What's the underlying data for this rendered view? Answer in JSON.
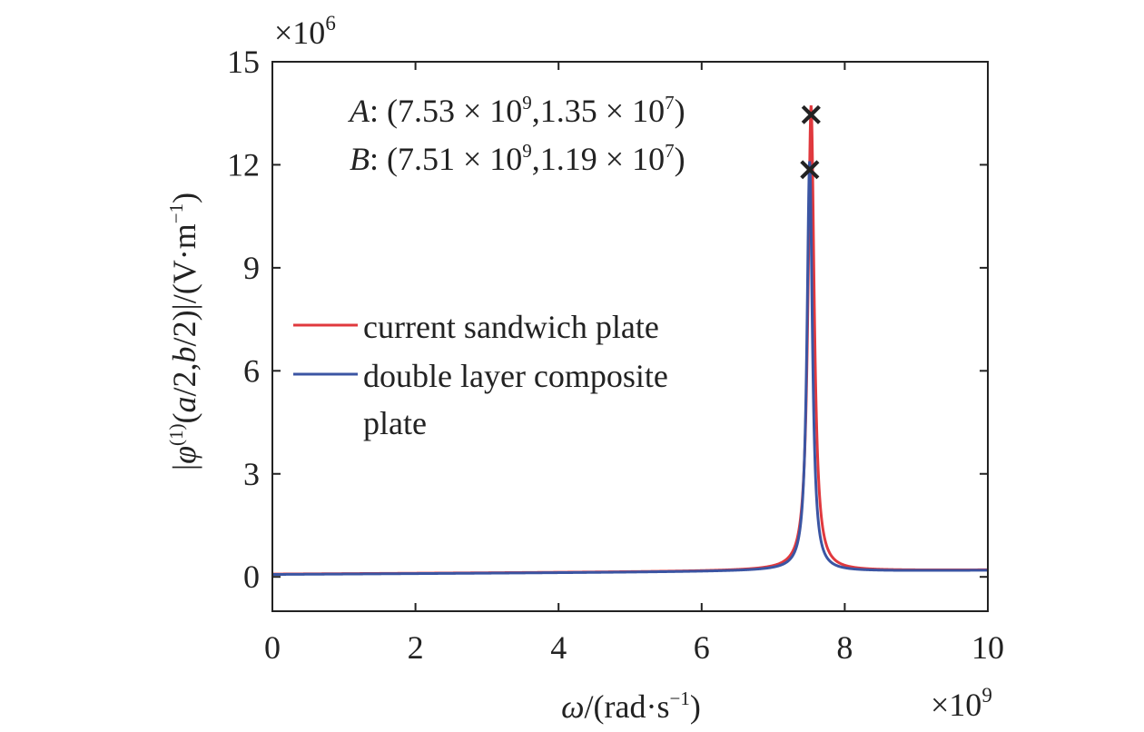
{
  "chart_data": {
    "type": "line",
    "xlabel": {
      "var": "ω",
      "rest": "/(rad·s",
      "sup": "−1",
      "close": ")"
    },
    "ylabel": {
      "pre": "|",
      "var": "φ",
      "sup": "(1)",
      "mid1": "(",
      "a": "a",
      "mid2": "/2,",
      "b": "b",
      "mid3": "/2)|/(V·m",
      "sup2": "−1",
      "close": ")"
    },
    "x_multiplier": {
      "text": "×10",
      "exp": "9"
    },
    "y_multiplier": {
      "text": "×10",
      "exp": "6"
    },
    "xlim": [
      0,
      10
    ],
    "ylim": [
      -1,
      15
    ],
    "x_ticks": [
      0,
      2,
      4,
      6,
      8,
      10
    ],
    "y_ticks": [
      0,
      3,
      6,
      9,
      12,
      15
    ],
    "grid": false,
    "legend_placement": "center-left",
    "series": [
      {
        "name": "current sandwich plate",
        "color": "#e0393e",
        "resonance": {
          "omega": 7.53,
          "peak": 13.5,
          "gamma": 0.052,
          "base": 0.08
        }
      },
      {
        "name": "double layer composite plate",
        "name_lines": [
          "double layer composite",
          "plate"
        ],
        "color": "#3b55a3",
        "resonance": {
          "omega": 7.51,
          "peak": 11.9,
          "gamma": 0.045,
          "base": 0.07
        }
      }
    ],
    "annotations": [
      {
        "label": "A",
        "sep": ": (7.53 × 10",
        "e1": "9",
        "mid": ",1.35 × 10",
        "e2": "7",
        "end": ")",
        "x": 7.53,
        "y": 13.5,
        "marker": "×"
      },
      {
        "label": "B",
        "sep": ": (7.51 × 10",
        "e1": "9",
        "mid": ",1.19 × 10",
        "e2": "7",
        "end": ")",
        "x": 7.51,
        "y": 11.9,
        "marker": "×"
      }
    ]
  }
}
